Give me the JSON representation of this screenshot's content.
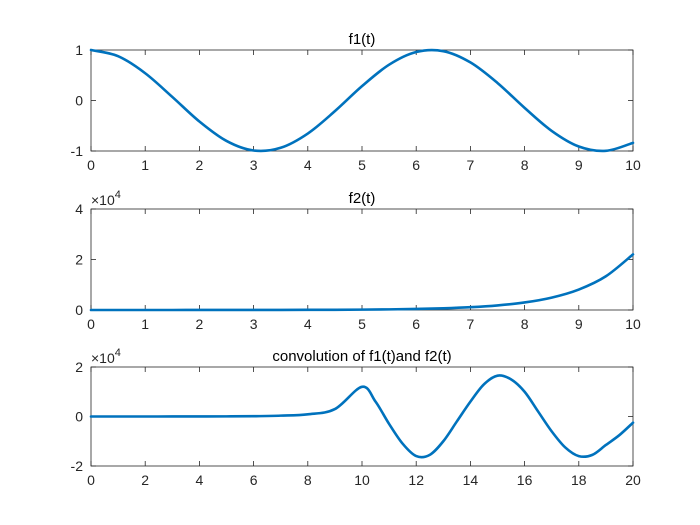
{
  "chart_data": [
    {
      "type": "line",
      "title": "f1(t)",
      "xlim": [
        0,
        10
      ],
      "ylim": [
        -1,
        1
      ],
      "xticks": [
        "0",
        "1",
        "2",
        "3",
        "4",
        "5",
        "6",
        "7",
        "8",
        "9",
        "10"
      ],
      "yticks": [
        "-1",
        "0",
        "1"
      ],
      "exponent": "",
      "color": "#0072BD",
      "series": [
        {
          "x": [
            0,
            0.5,
            1,
            1.5,
            2,
            2.5,
            3,
            3.5,
            4,
            4.5,
            5,
            5.5,
            6,
            6.5,
            7,
            7.5,
            8,
            8.5,
            9,
            9.5,
            10
          ],
          "y": [
            1,
            0.878,
            0.54,
            0.071,
            -0.416,
            -0.801,
            -0.99,
            -0.936,
            -0.654,
            -0.211,
            0.284,
            0.709,
            0.96,
            0.977,
            0.754,
            0.347,
            -0.146,
            -0.602,
            -0.911,
            -0.997,
            -0.839
          ]
        }
      ]
    },
    {
      "type": "line",
      "title": "f2(t)",
      "xlim": [
        0,
        10
      ],
      "ylim": [
        0,
        4
      ],
      "xticks": [
        "0",
        "1",
        "2",
        "3",
        "4",
        "5",
        "6",
        "7",
        "8",
        "9",
        "10"
      ],
      "yticks": [
        "0",
        "2",
        "4"
      ],
      "exponent": "4",
      "color": "#0072BD",
      "series": [
        {
          "x": [
            0,
            0.5,
            1,
            1.5,
            2,
            2.5,
            3,
            3.5,
            4,
            4.5,
            5,
            5.5,
            6,
            6.5,
            7,
            7.5,
            8,
            8.5,
            9,
            9.5,
            10
          ],
          "y": [
            0.0001,
            0.0002,
            0.0003,
            0.0004,
            0.0007,
            0.0012,
            0.002,
            0.0033,
            0.0055,
            0.009,
            0.0148,
            0.0245,
            0.0403,
            0.0665,
            0.1097,
            0.1808,
            0.2981,
            0.4915,
            0.8103,
            1.336,
            2.2026
          ]
        }
      ]
    },
    {
      "type": "line",
      "title": "convolution of f1(t)and f2(t)",
      "xlim": [
        0,
        20
      ],
      "ylim": [
        -2,
        2
      ],
      "xticks": [
        "0",
        "2",
        "4",
        "6",
        "8",
        "10",
        "12",
        "14",
        "16",
        "18",
        "20"
      ],
      "yticks": [
        "-2",
        "0",
        "2"
      ],
      "exponent": "4",
      "color": "#0072BD",
      "series": [
        {
          "x": [
            0,
            1,
            2,
            3,
            4,
            5,
            6,
            7,
            8,
            9,
            10,
            10.5,
            11,
            11.5,
            12,
            12.5,
            13,
            13.5,
            14,
            14.5,
            15,
            15.5,
            16,
            16.5,
            17,
            17.5,
            18,
            18.5,
            19,
            19.5,
            20
          ],
          "y": [
            0,
            0.0001,
            0.0003,
            0.0008,
            0.002,
            0.005,
            0.013,
            0.035,
            0.09,
            0.3,
            1.2,
            0.6,
            -0.3,
            -1.1,
            -1.6,
            -1.55,
            -1.0,
            -0.2,
            0.6,
            1.3,
            1.65,
            1.5,
            1.0,
            0.2,
            -0.6,
            -1.25,
            -1.6,
            -1.55,
            -1.15,
            -0.75,
            -0.25
          ]
        }
      ]
    }
  ]
}
